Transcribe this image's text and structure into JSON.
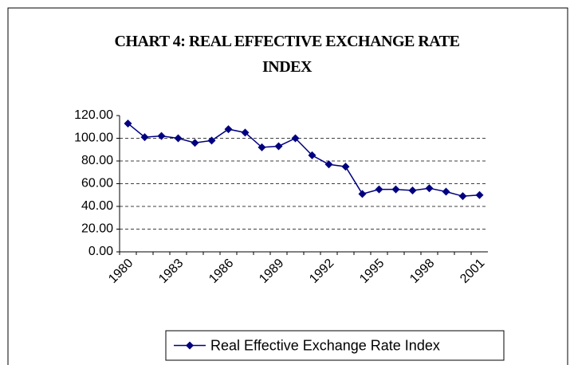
{
  "chart_data": {
    "type": "line",
    "title": "CHART 4: REAL EFFECTIVE EXCHANGE RATE INDEX",
    "categories": [
      "1980",
      null,
      null,
      "1983",
      null,
      null,
      "1986",
      null,
      null,
      "1989",
      null,
      null,
      "1992",
      null,
      null,
      "1995",
      null,
      null,
      "1998",
      null,
      null,
      "2001"
    ],
    "series": [
      {
        "name": "Real Effective Exchange Rate Index",
        "color": "#000080",
        "values": [
          113,
          101,
          102,
          100,
          96,
          98,
          108,
          105,
          92,
          93,
          100,
          85,
          77,
          75,
          51,
          55,
          55,
          54,
          56,
          53,
          49,
          50
        ]
      }
    ],
    "ylim": [
      0,
      120
    ],
    "yticks": [
      {
        "value": 0,
        "label": "0.00"
      },
      {
        "value": 20,
        "label": "20.00"
      },
      {
        "value": 40,
        "label": "40.00"
      },
      {
        "value": 60,
        "label": "60.00"
      },
      {
        "value": 80,
        "label": "80.00"
      },
      {
        "value": 100,
        "label": "100.00"
      },
      {
        "value": 120,
        "label": "120.00"
      }
    ],
    "grid": true,
    "legend": "bottom"
  }
}
